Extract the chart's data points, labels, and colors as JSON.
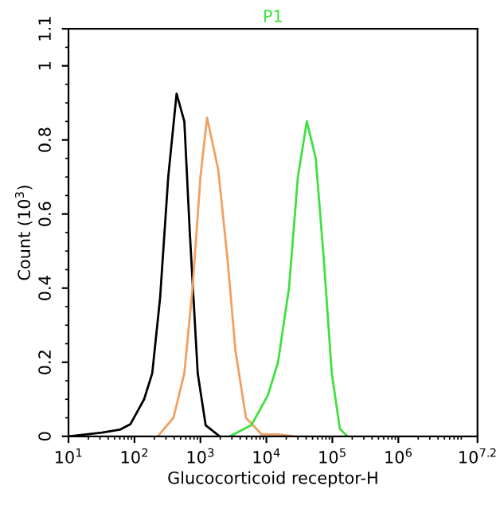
{
  "chart_data": {
    "type": "line",
    "title": "P1",
    "xlabel": "Glucocorticoid receptor-H",
    "ylabel": "Count (10$^{3}$)",
    "log": "x",
    "grid": false,
    "legend": false,
    "marker": "none",
    "line_style": "solid",
    "xlim": [
      10,
      15848932
    ],
    "xticks": [
      {
        "value": 10,
        "label": "10$^{1}$"
      },
      {
        "value": 100,
        "label": "10$^{2}$"
      },
      {
        "value": 1000,
        "label": "10$^{3}$"
      },
      {
        "value": 10000,
        "label": "10$^{4}$"
      },
      {
        "value": 100000,
        "label": "10$^{5}$"
      },
      {
        "value": 1000000,
        "label": "10$^{6}$"
      },
      {
        "value": 15848932,
        "label": "10$^{7.2}$"
      }
    ],
    "ylim": [
      0,
      1.1
    ],
    "yticks": [
      0,
      0.2,
      0.4,
      0.6,
      0.8,
      1,
      1.1
    ],
    "series": [
      {
        "color": "#000000",
        "x": [
          10,
          32,
          60,
          87,
          140,
          186,
          245,
          325,
          435,
          570,
          690,
          910,
          1200,
          1950
        ],
        "values": [
          0,
          0.01,
          0.018,
          0.033,
          0.1,
          0.17,
          0.375,
          0.7,
          0.925,
          0.85,
          0.55,
          0.17,
          0.03,
          0
        ]
      },
      {
        "color": "#f0a060",
        "x": [
          225,
          390,
          570,
          760,
          1000,
          1260,
          1860,
          2570,
          3400,
          4900,
          8500,
          15000,
          26000
        ],
        "values": [
          0,
          0.05,
          0.17,
          0.4,
          0.7,
          0.86,
          0.72,
          0.48,
          0.23,
          0.05,
          0.005,
          0.005,
          0
        ]
      },
      {
        "color": "#40e040",
        "x": [
          2800,
          5900,
          10500,
          15000,
          22000,
          30000,
          41000,
          56000,
          74000,
          98000,
          130000,
          170000
        ],
        "values": [
          0,
          0.03,
          0.11,
          0.2,
          0.4,
          0.7,
          0.85,
          0.75,
          0.48,
          0.17,
          0.02,
          0
        ]
      }
    ]
  }
}
